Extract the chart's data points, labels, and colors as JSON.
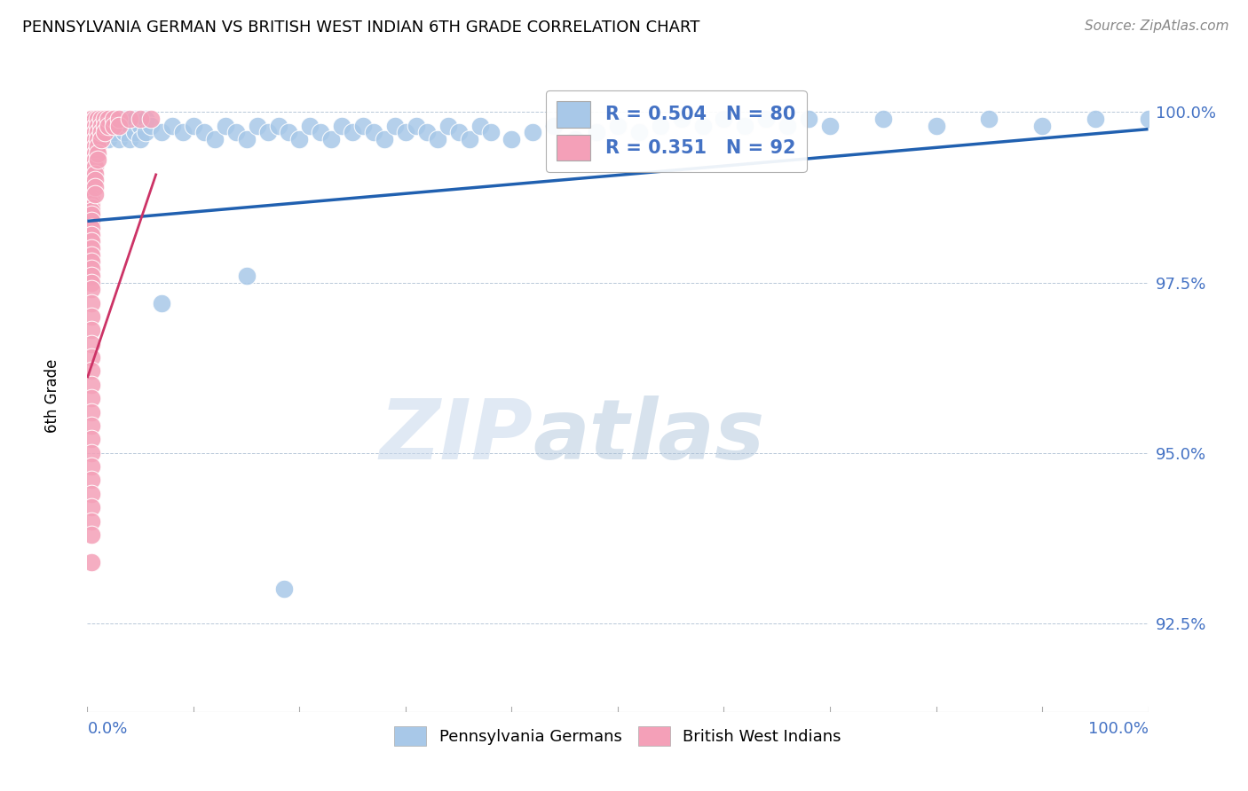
{
  "title": "PENNSYLVANIA GERMAN VS BRITISH WEST INDIAN 6TH GRADE CORRELATION CHART",
  "source": "Source: ZipAtlas.com",
  "ylabel": "6th Grade",
  "blue_R": 0.504,
  "blue_N": 80,
  "pink_R": 0.351,
  "pink_N": 92,
  "blue_color": "#a8c8e8",
  "pink_color": "#f4a0b8",
  "blue_line_color": "#2060b0",
  "pink_line_color": "#cc3366",
  "legend1": "Pennsylvania Germans",
  "legend2": "British West Indians",
  "watermark_zip": "ZIP",
  "watermark_atlas": "atlas",
  "ylim": [
    0.912,
    1.006
  ],
  "xlim": [
    0.0,
    1.0
  ],
  "ytick_values": [
    1.0,
    0.975,
    0.95,
    0.925
  ],
  "ytick_labels": [
    "100.0%",
    "97.5%",
    "95.0%",
    "92.5%"
  ],
  "blue_line": [
    [
      0.0,
      0.984
    ],
    [
      1.0,
      0.9975
    ]
  ],
  "pink_line": [
    [
      0.0,
      0.961
    ],
    [
      0.065,
      0.991
    ]
  ],
  "blue_dots": [
    [
      0.01,
      0.996
    ],
    [
      0.01,
      0.998
    ],
    [
      0.015,
      0.997
    ],
    [
      0.015,
      0.999
    ],
    [
      0.02,
      0.996
    ],
    [
      0.02,
      0.998
    ],
    [
      0.025,
      0.997
    ],
    [
      0.025,
      0.999
    ],
    [
      0.03,
      0.998
    ],
    [
      0.03,
      0.996
    ],
    [
      0.035,
      0.999
    ],
    [
      0.035,
      0.997
    ],
    [
      0.04,
      0.998
    ],
    [
      0.04,
      0.996
    ],
    [
      0.045,
      0.999
    ],
    [
      0.045,
      0.997
    ],
    [
      0.05,
      0.998
    ],
    [
      0.05,
      0.996
    ],
    [
      0.055,
      0.999
    ],
    [
      0.055,
      0.997
    ],
    [
      0.06,
      0.998
    ],
    [
      0.07,
      0.997
    ],
    [
      0.08,
      0.998
    ],
    [
      0.09,
      0.997
    ],
    [
      0.1,
      0.998
    ],
    [
      0.11,
      0.997
    ],
    [
      0.12,
      0.996
    ],
    [
      0.13,
      0.998
    ],
    [
      0.14,
      0.997
    ],
    [
      0.15,
      0.996
    ],
    [
      0.16,
      0.998
    ],
    [
      0.17,
      0.997
    ],
    [
      0.18,
      0.998
    ],
    [
      0.19,
      0.997
    ],
    [
      0.2,
      0.996
    ],
    [
      0.21,
      0.998
    ],
    [
      0.22,
      0.997
    ],
    [
      0.23,
      0.996
    ],
    [
      0.24,
      0.998
    ],
    [
      0.25,
      0.997
    ],
    [
      0.26,
      0.998
    ],
    [
      0.27,
      0.997
    ],
    [
      0.28,
      0.996
    ],
    [
      0.29,
      0.998
    ],
    [
      0.3,
      0.997
    ],
    [
      0.31,
      0.998
    ],
    [
      0.32,
      0.997
    ],
    [
      0.33,
      0.996
    ],
    [
      0.34,
      0.998
    ],
    [
      0.35,
      0.997
    ],
    [
      0.36,
      0.996
    ],
    [
      0.37,
      0.998
    ],
    [
      0.38,
      0.997
    ],
    [
      0.4,
      0.996
    ],
    [
      0.42,
      0.997
    ],
    [
      0.44,
      0.998
    ],
    [
      0.46,
      0.996
    ],
    [
      0.48,
      0.997
    ],
    [
      0.5,
      0.998
    ],
    [
      0.52,
      0.997
    ],
    [
      0.54,
      0.998
    ],
    [
      0.56,
      0.999
    ],
    [
      0.58,
      0.998
    ],
    [
      0.6,
      0.999
    ],
    [
      0.62,
      0.998
    ],
    [
      0.64,
      0.999
    ],
    [
      0.66,
      0.998
    ],
    [
      0.68,
      0.999
    ],
    [
      0.7,
      0.998
    ],
    [
      0.75,
      0.999
    ],
    [
      0.8,
      0.998
    ],
    [
      0.85,
      0.999
    ],
    [
      0.9,
      0.998
    ],
    [
      0.95,
      0.999
    ],
    [
      1.0,
      0.999
    ],
    [
      0.15,
      0.976
    ],
    [
      0.07,
      0.972
    ],
    [
      0.185,
      0.93
    ]
  ],
  "pink_dots": [
    [
      0.004,
      0.999
    ],
    [
      0.004,
      0.9985
    ],
    [
      0.004,
      0.998
    ],
    [
      0.004,
      0.9975
    ],
    [
      0.004,
      0.997
    ],
    [
      0.004,
      0.9965
    ],
    [
      0.004,
      0.996
    ],
    [
      0.004,
      0.9955
    ],
    [
      0.004,
      0.995
    ],
    [
      0.004,
      0.9945
    ],
    [
      0.004,
      0.994
    ],
    [
      0.004,
      0.9935
    ],
    [
      0.004,
      0.993
    ],
    [
      0.004,
      0.9925
    ],
    [
      0.004,
      0.992
    ],
    [
      0.004,
      0.9915
    ],
    [
      0.004,
      0.991
    ],
    [
      0.004,
      0.9905
    ],
    [
      0.004,
      0.99
    ],
    [
      0.004,
      0.9895
    ],
    [
      0.004,
      0.989
    ],
    [
      0.004,
      0.9885
    ],
    [
      0.004,
      0.988
    ],
    [
      0.004,
      0.9875
    ],
    [
      0.004,
      0.987
    ],
    [
      0.004,
      0.9865
    ],
    [
      0.004,
      0.986
    ],
    [
      0.004,
      0.9855
    ],
    [
      0.004,
      0.985
    ],
    [
      0.004,
      0.984
    ],
    [
      0.004,
      0.983
    ],
    [
      0.004,
      0.982
    ],
    [
      0.004,
      0.981
    ],
    [
      0.004,
      0.98
    ],
    [
      0.004,
      0.979
    ],
    [
      0.004,
      0.978
    ],
    [
      0.004,
      0.977
    ],
    [
      0.004,
      0.976
    ],
    [
      0.004,
      0.975
    ],
    [
      0.004,
      0.974
    ],
    [
      0.004,
      0.972
    ],
    [
      0.004,
      0.97
    ],
    [
      0.004,
      0.968
    ],
    [
      0.004,
      0.966
    ],
    [
      0.004,
      0.964
    ],
    [
      0.004,
      0.962
    ],
    [
      0.004,
      0.96
    ],
    [
      0.004,
      0.958
    ],
    [
      0.007,
      0.999
    ],
    [
      0.007,
      0.998
    ],
    [
      0.007,
      0.997
    ],
    [
      0.007,
      0.996
    ],
    [
      0.007,
      0.995
    ],
    [
      0.007,
      0.994
    ],
    [
      0.007,
      0.993
    ],
    [
      0.007,
      0.992
    ],
    [
      0.007,
      0.991
    ],
    [
      0.007,
      0.99
    ],
    [
      0.007,
      0.989
    ],
    [
      0.007,
      0.988
    ],
    [
      0.01,
      0.999
    ],
    [
      0.01,
      0.998
    ],
    [
      0.01,
      0.997
    ],
    [
      0.01,
      0.996
    ],
    [
      0.01,
      0.995
    ],
    [
      0.01,
      0.994
    ],
    [
      0.01,
      0.993
    ],
    [
      0.013,
      0.999
    ],
    [
      0.013,
      0.998
    ],
    [
      0.013,
      0.997
    ],
    [
      0.013,
      0.996
    ],
    [
      0.016,
      0.999
    ],
    [
      0.016,
      0.998
    ],
    [
      0.016,
      0.997
    ],
    [
      0.02,
      0.999
    ],
    [
      0.02,
      0.998
    ],
    [
      0.025,
      0.999
    ],
    [
      0.025,
      0.998
    ],
    [
      0.03,
      0.999
    ],
    [
      0.03,
      0.998
    ],
    [
      0.04,
      0.999
    ],
    [
      0.05,
      0.999
    ],
    [
      0.06,
      0.999
    ],
    [
      0.004,
      0.956
    ],
    [
      0.004,
      0.954
    ],
    [
      0.004,
      0.952
    ],
    [
      0.004,
      0.95
    ],
    [
      0.004,
      0.948
    ],
    [
      0.004,
      0.946
    ],
    [
      0.004,
      0.944
    ],
    [
      0.004,
      0.942
    ],
    [
      0.004,
      0.94
    ],
    [
      0.004,
      0.938
    ],
    [
      0.004,
      0.934
    ]
  ]
}
